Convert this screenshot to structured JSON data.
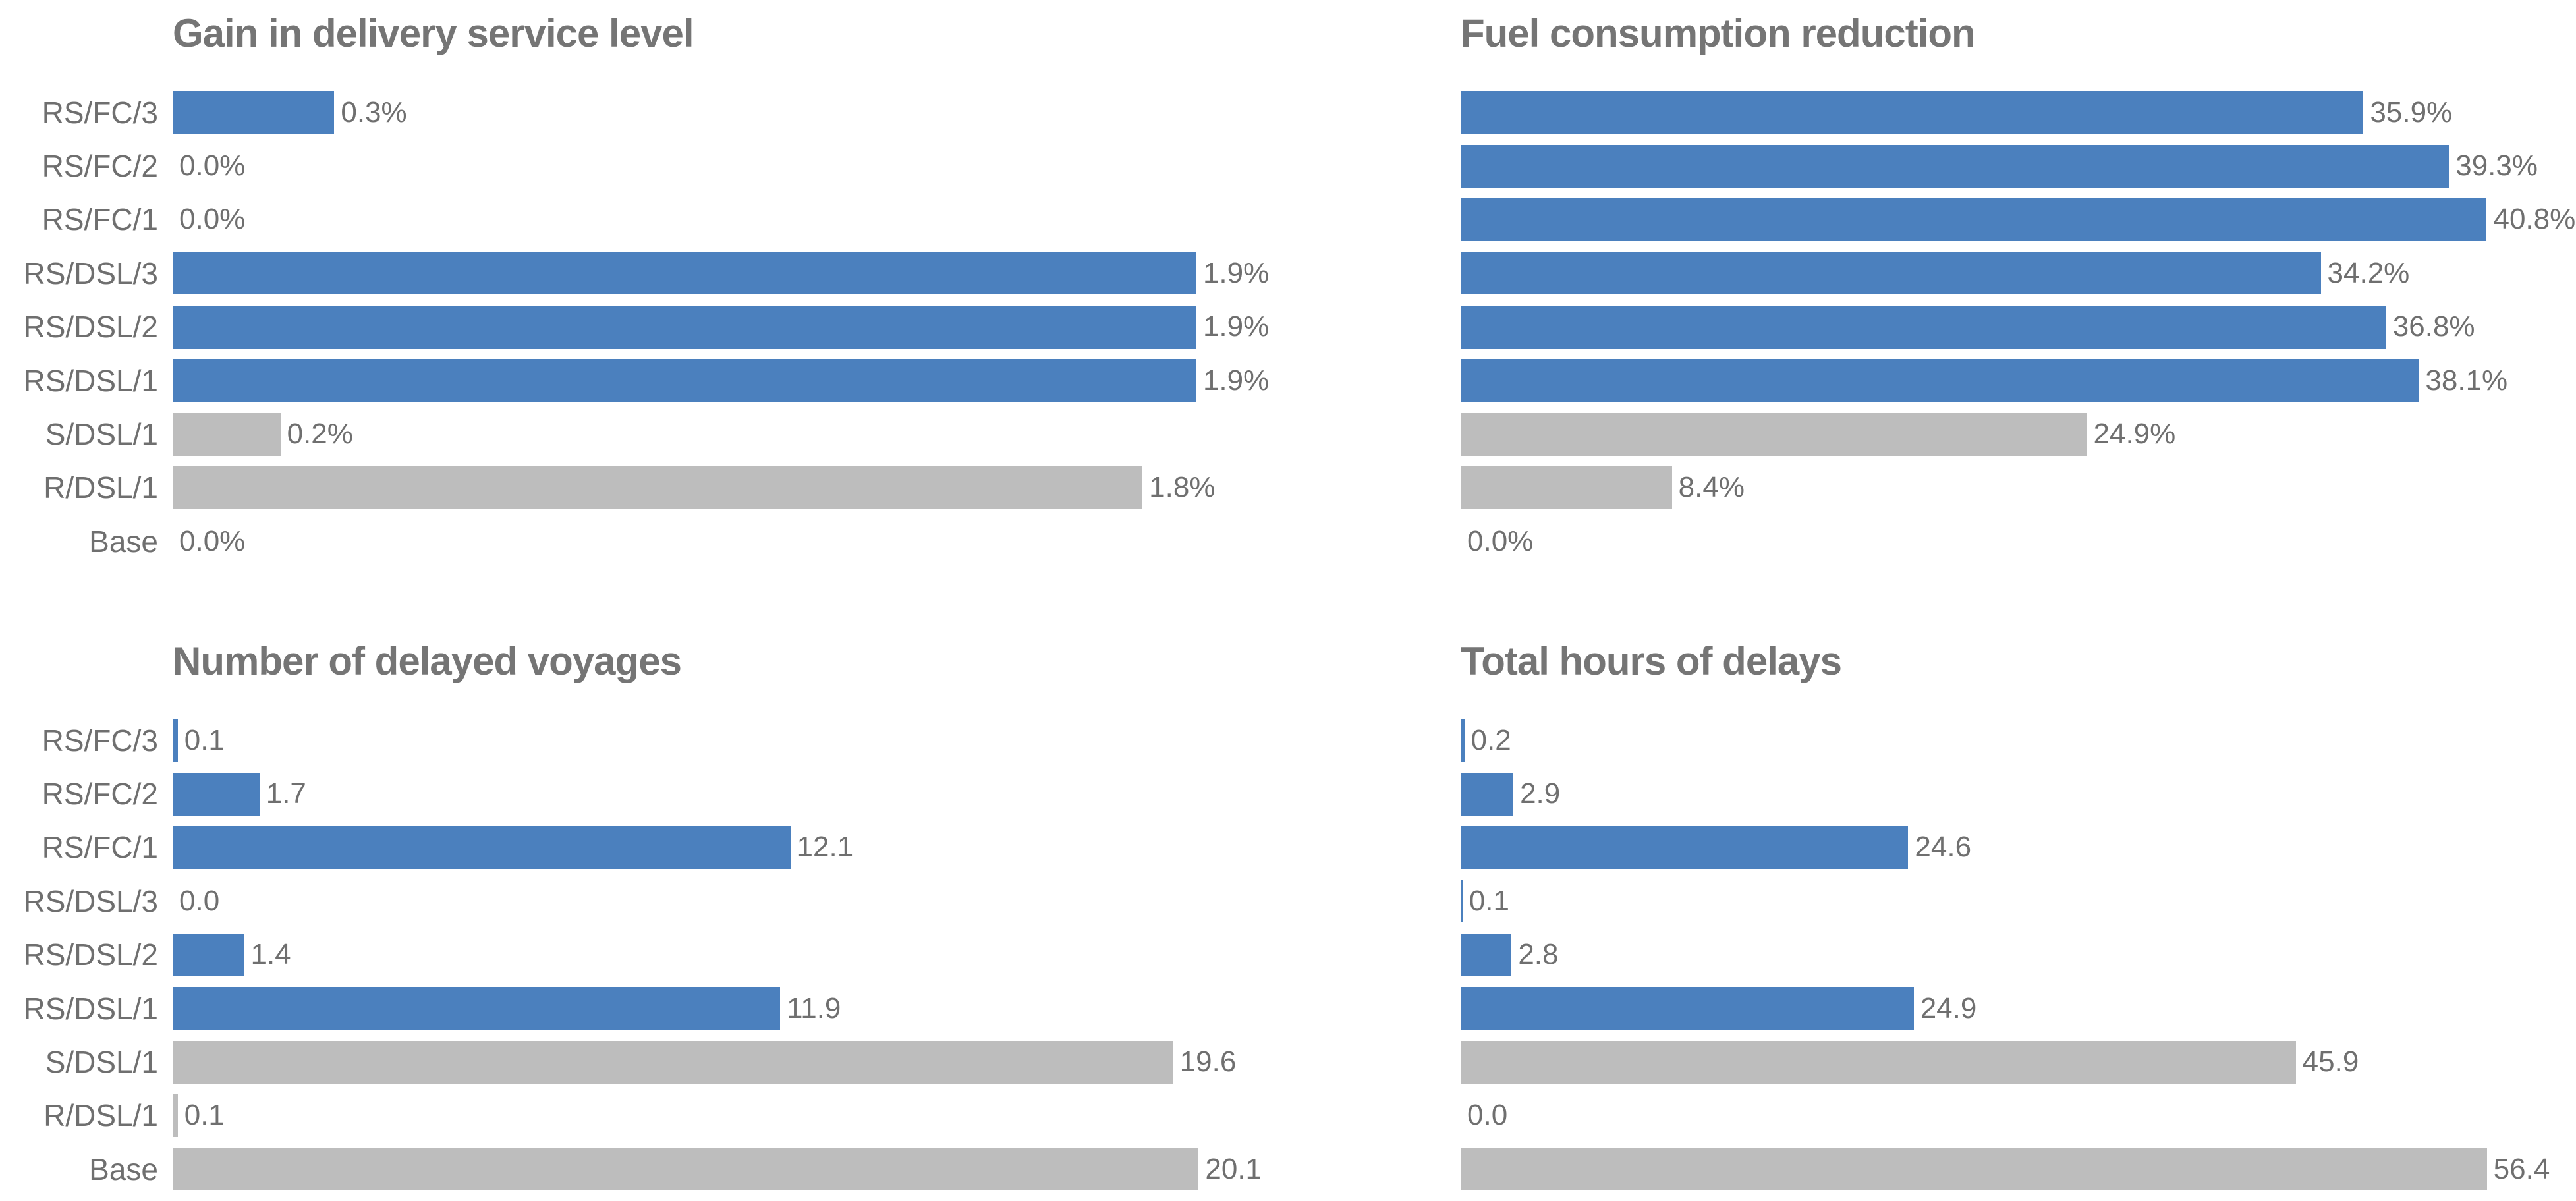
{
  "colors": {
    "bar_blue": "#4b80be",
    "bar_gray": "#bdbdbd",
    "title_text": "#757575",
    "label_text": "#6f6f6f",
    "background": "#ffffff"
  },
  "chart_data": [
    {
      "type": "bar",
      "orientation": "horizontal",
      "title": "Gain in delivery service level",
      "categories": [
        "RS/FC/3",
        "RS/FC/2",
        "RS/FC/1",
        "RS/DSL/3",
        "RS/DSL/2",
        "RS/DSL/1",
        "S/DSL/1",
        "R/DSL/1",
        "Base"
      ],
      "values": [
        0.3,
        0.0,
        0.0,
        1.9,
        1.9,
        1.9,
        0.2,
        1.8,
        0.0
      ],
      "labels": [
        "0.3%",
        "0.0%",
        "0.0%",
        "1.9%",
        "1.9%",
        "1.9%",
        "0.2%",
        "1.8%",
        "0.0%"
      ],
      "bar_colors": [
        "blue",
        "blue",
        "blue",
        "blue",
        "blue",
        "blue",
        "gray",
        "gray",
        "gray"
      ],
      "unit": "percent",
      "xlim": [
        0,
        2.07
      ],
      "grid": false,
      "legend": false,
      "show_category_labels": true
    },
    {
      "type": "bar",
      "orientation": "horizontal",
      "title": "Fuel consumption reduction",
      "categories": [
        "RS/FC/3",
        "RS/FC/2",
        "RS/FC/1",
        "RS/DSL/3",
        "RS/DSL/2",
        "RS/DSL/1",
        "S/DSL/1",
        "R/DSL/1",
        "Base"
      ],
      "values": [
        35.9,
        39.3,
        40.8,
        34.2,
        36.8,
        38.1,
        24.9,
        8.4,
        0.0
      ],
      "labels": [
        "35.9%",
        "39.3%",
        "40.8%",
        "34.2%",
        "36.8%",
        "38.1%",
        "24.9%",
        "8.4%",
        "0.0%"
      ],
      "bar_colors": [
        "blue",
        "blue",
        "blue",
        "blue",
        "blue",
        "blue",
        "gray",
        "gray",
        "gray"
      ],
      "unit": "percent",
      "xlim": [
        0,
        44.35
      ],
      "grid": false,
      "legend": false,
      "show_category_labels": false
    },
    {
      "type": "bar",
      "orientation": "horizontal",
      "title": "Number of delayed voyages",
      "categories": [
        "RS/FC/3",
        "RS/FC/2",
        "RS/FC/1",
        "RS/DSL/3",
        "RS/DSL/2",
        "RS/DSL/1",
        "S/DSL/1",
        "R/DSL/1",
        "Base"
      ],
      "values": [
        0.1,
        1.7,
        12.1,
        0.0,
        1.4,
        11.9,
        19.6,
        0.1,
        20.1
      ],
      "labels": [
        "0.1",
        "1.7",
        "12.1",
        "0.0",
        "1.4",
        "11.9",
        "19.6",
        "0.1",
        "20.1"
      ],
      "bar_colors": [
        "blue",
        "blue",
        "blue",
        "blue",
        "blue",
        "blue",
        "gray",
        "gray",
        "gray"
      ],
      "unit": "count",
      "xlim": [
        0,
        21.85
      ],
      "grid": false,
      "legend": false,
      "show_category_labels": true
    },
    {
      "type": "bar",
      "orientation": "horizontal",
      "title": "Total hours of delays",
      "categories": [
        "RS/FC/3",
        "RS/FC/2",
        "RS/FC/1",
        "RS/DSL/3",
        "RS/DSL/2",
        "RS/DSL/1",
        "S/DSL/1",
        "R/DSL/1",
        "Base"
      ],
      "values": [
        0.2,
        2.9,
        24.6,
        0.1,
        2.8,
        24.9,
        45.9,
        0.0,
        56.4
      ],
      "labels": [
        "0.2",
        "2.9",
        "24.6",
        "0.1",
        "2.8",
        "24.9",
        "45.9",
        "0.0",
        "56.4"
      ],
      "bar_colors": [
        "blue",
        "blue",
        "blue",
        "blue",
        "blue",
        "blue",
        "gray",
        "gray",
        "gray"
      ],
      "unit": "hours",
      "xlim": [
        0,
        61.3
      ],
      "grid": false,
      "legend": false,
      "show_category_labels": false
    }
  ]
}
